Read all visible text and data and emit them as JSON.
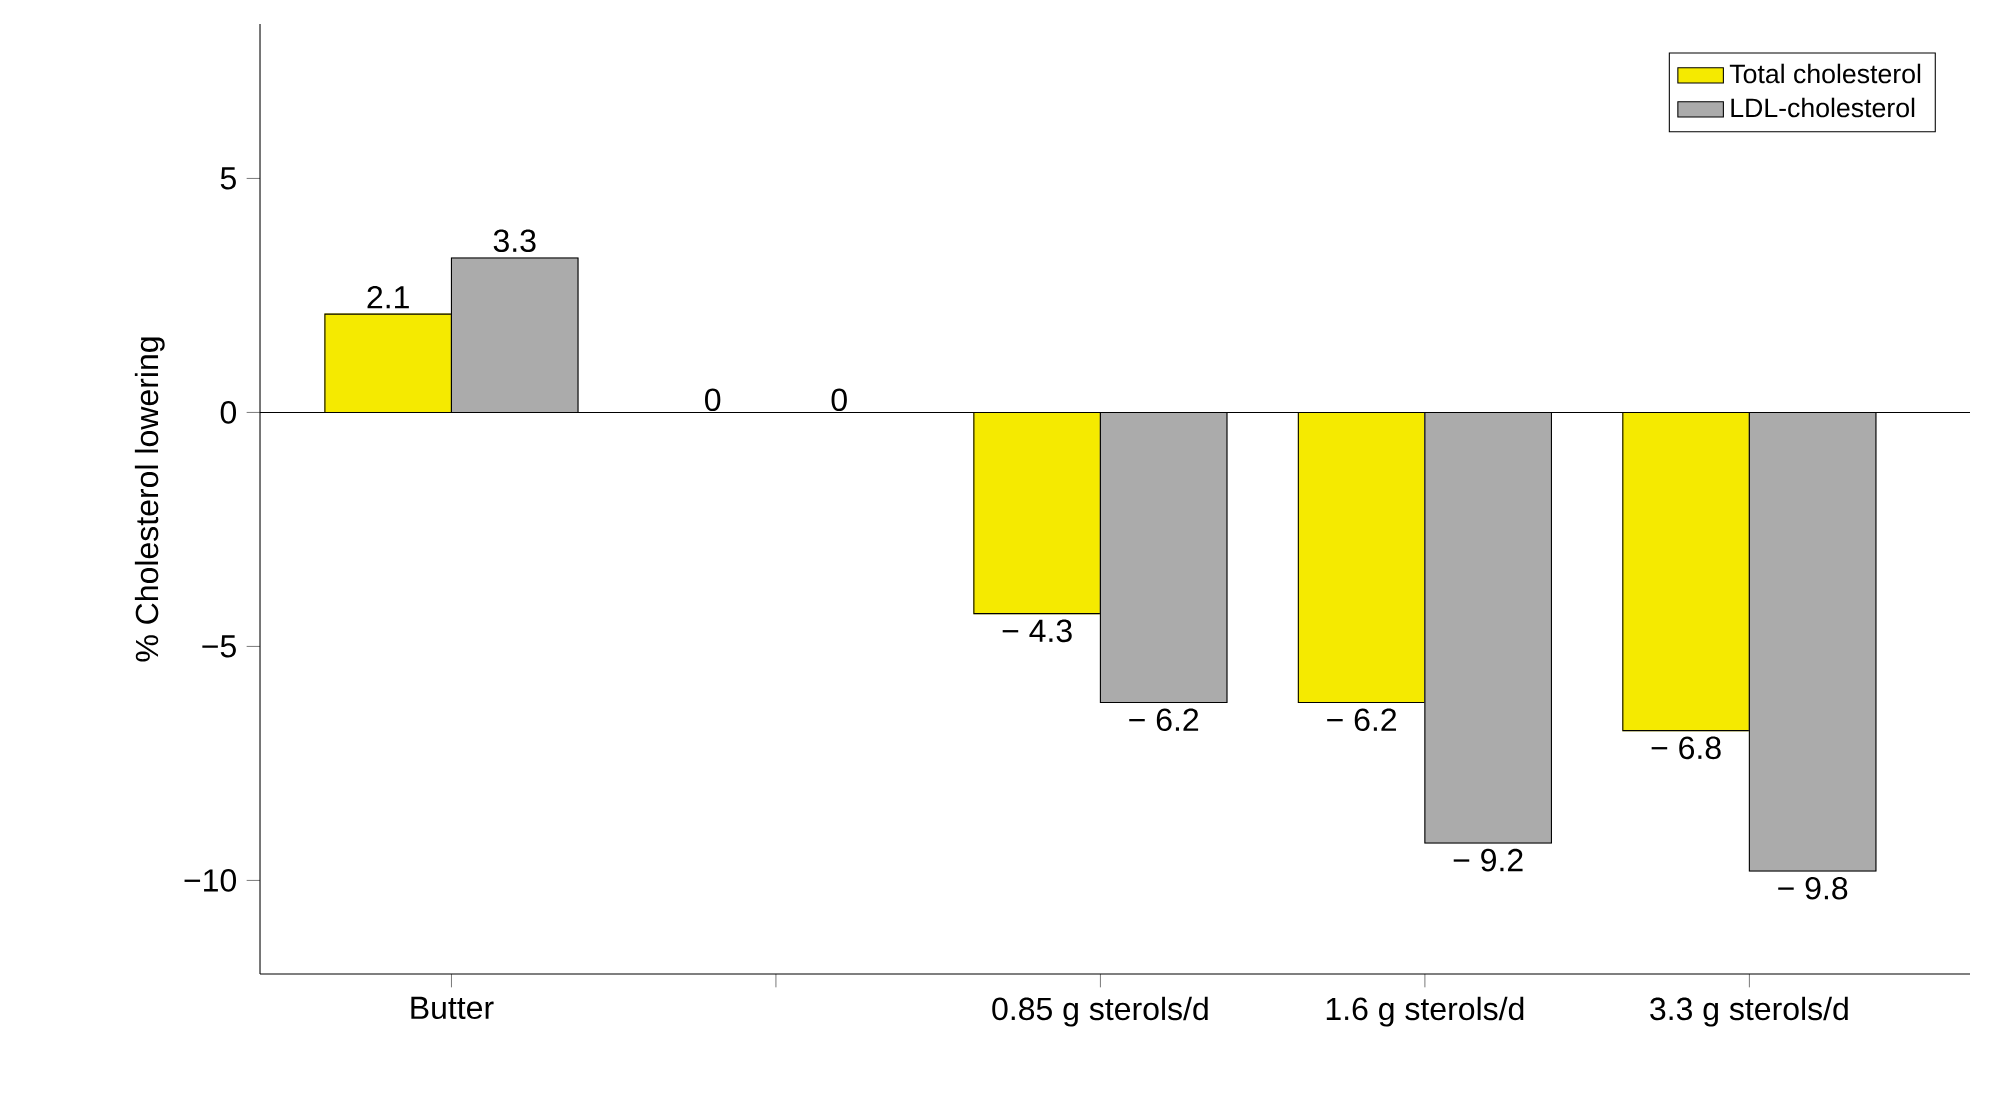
{
  "chart_data": {
    "type": "bar",
    "ylabel": "% Cholesterol lowering",
    "categories": [
      "Butter",
      null,
      "0.85 g sterols/d",
      "1.6 g sterols/d",
      "3.3 g sterols/d"
    ],
    "series": [
      {
        "name": "Total cholesterol",
        "color": "#f5ea00",
        "values": [
          2.1,
          0,
          -4.3,
          -6.2,
          -6.8
        ],
        "value_labels": [
          "2.1",
          "0",
          "− 4.3",
          "− 6.2",
          "− 6.8"
        ]
      },
      {
        "name": "LDL-cholesterol",
        "color": "#ababab",
        "values": [
          3.3,
          0,
          -6.2,
          -9.2,
          -9.8
        ],
        "value_labels": [
          "3.3",
          "0",
          "− 6.2",
          "− 9.2",
          "− 9.8"
        ]
      }
    ],
    "ylim": [
      -12,
      8.3
    ],
    "yticks": [
      {
        "value": -10,
        "label": "−10"
      },
      {
        "value": -5,
        "label": "−5"
      },
      0,
      5
    ],
    "ref_lines": [
      {
        "axis": "y",
        "value": 0
      }
    ],
    "legend": "top right"
  }
}
